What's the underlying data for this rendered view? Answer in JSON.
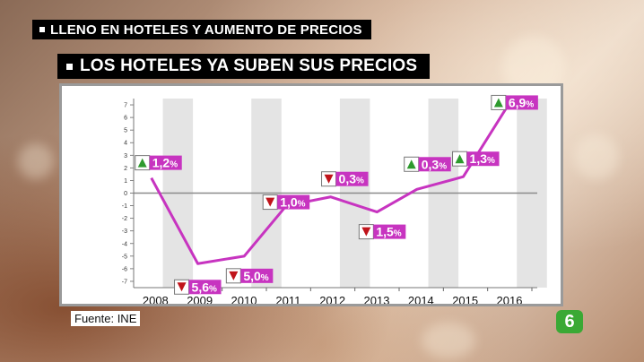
{
  "strap_top": "LLENO EN HOTELES Y AUMENTO DE PRECIOS",
  "strap_main": "LOS HOTELES YA SUBEN SUS PRECIOS",
  "source": "Fuente: INE",
  "logo_text": "6",
  "colors": {
    "line": "#c734c0",
    "up": "#2e9a2e",
    "down": "#c0141b",
    "band": "#e4e4e4",
    "zero": "#8a8a8a"
  },
  "chart_data": {
    "type": "line",
    "categories": [
      "2008",
      "2009",
      "2010",
      "2011",
      "2012",
      "2013",
      "2014",
      "2015",
      "2016"
    ],
    "x_positions": [
      2007.9,
      2008.95,
      2010,
      2010.95,
      2011.95,
      2013,
      2013.9,
      2014.95,
      2015.95
    ],
    "values": [
      1.2,
      -5.6,
      -5.0,
      -1.0,
      -0.3,
      -1.5,
      0.3,
      1.3,
      6.9
    ],
    "labels": [
      {
        "direction": "up",
        "value": "1,2",
        "unit": "%"
      },
      {
        "direction": "down",
        "value": "5,6",
        "unit": "%"
      },
      {
        "direction": "down",
        "value": "5,0",
        "unit": "%"
      },
      {
        "direction": "down",
        "value": "1,0",
        "unit": "%"
      },
      {
        "direction": "down",
        "value": "0,3",
        "unit": "%"
      },
      {
        "direction": "down",
        "value": "1,5",
        "unit": "%"
      },
      {
        "direction": "up",
        "value": "0,3",
        "unit": "%"
      },
      {
        "direction": "up",
        "value": "1,3",
        "unit": "%"
      },
      {
        "direction": "up",
        "value": "6,9",
        "unit": "%"
      }
    ],
    "yticks": [
      7,
      6,
      5,
      4,
      3,
      2,
      1,
      0,
      -1,
      -2,
      -3,
      -4,
      -5,
      -6,
      -7
    ],
    "ylim": [
      -7.5,
      7.5
    ],
    "xlim": [
      2007.5,
      2016.5
    ],
    "grid": "alternating vertical bands",
    "legend": "none"
  }
}
